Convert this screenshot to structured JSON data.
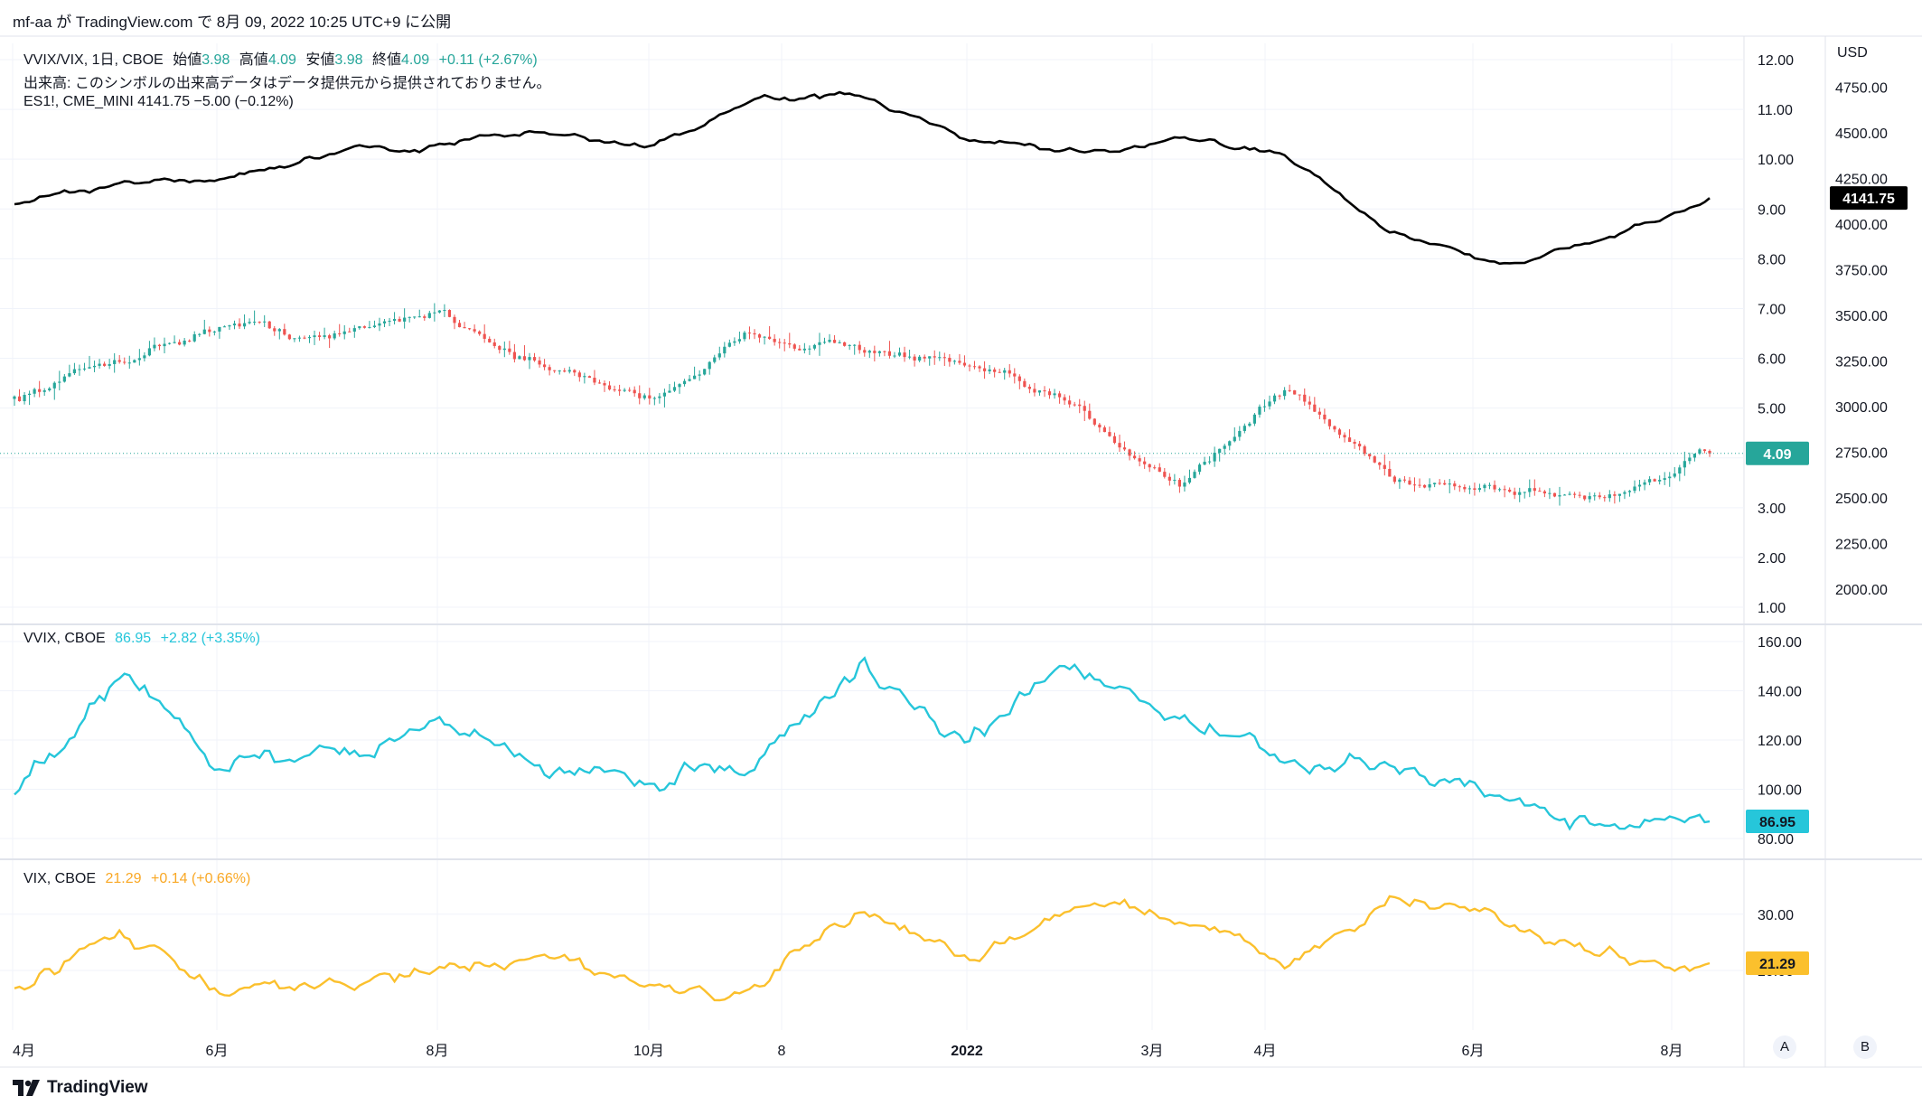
{
  "header": {
    "publish_text": "mf-aa が TradingView.com で 8月 09, 2022 10:25 UTC+9 に公開"
  },
  "brand": {
    "logo_text": "TradingView"
  },
  "colors": {
    "up": "#26a69a",
    "down": "#ef5350",
    "es_line": "#000000",
    "vvix_line": "#26c6da",
    "vix_line": "#fbc02d",
    "grid": "#f0f3fa",
    "text": "#131722"
  },
  "legend_main": {
    "symbol": "VVIX/VIX, 1日, CBOE",
    "open_label": "始値",
    "open": "3.98",
    "high_label": "高値",
    "high": "4.09",
    "low_label": "安値",
    "low": "3.98",
    "close_label": "終値",
    "close": "4.09",
    "change": "+0.11 (+2.67%)",
    "volume_note": "出来高: このシンボルの出来高データはデータ提供元から提供されておりません。",
    "es_line": "ES1!, CME_MINI  4141.75  −5.00 (−0.12%)"
  },
  "legend_vvix": {
    "symbol": "VVIX, CBOE",
    "value": "86.95",
    "change": "+2.82 (+3.35%)"
  },
  "legend_vix": {
    "symbol": "VIX, CBOE",
    "value": "21.29",
    "change": "+0.14 (+0.66%)"
  },
  "price_labels": {
    "ratio": "4.09",
    "es": "4141.75",
    "vvix": "86.95",
    "vix": "21.29",
    "currency": "USD"
  },
  "scale_buttons": {
    "a": "A",
    "b": "B"
  },
  "chart_data": [
    {
      "type": "candlestick",
      "title": "VVIX/VIX, 1日, CBOE",
      "x": [
        "2021-04",
        "2021-05",
        "2021-06",
        "2021-07",
        "2021-08",
        "2021-09",
        "2021-10",
        "2021-11",
        "2021-12",
        "2022-01",
        "2022-02",
        "2022-03",
        "2022-04",
        "2022-05",
        "2022-06",
        "2022-07",
        "2022-08"
      ],
      "close_monthly_approx": [
        5.2,
        6.0,
        6.7,
        6.4,
        7.0,
        5.8,
        5.2,
        6.5,
        6.2,
        5.8,
        5.0,
        3.5,
        5.4,
        3.6,
        3.4,
        3.2,
        4.09
      ],
      "y_ticks": [
        "1.00",
        "2.00",
        "3.00",
        "4.00",
        "5.00",
        "6.00",
        "7.00",
        "8.00",
        "9.00",
        "10.00",
        "11.00",
        "12.00"
      ],
      "ylim": [
        1,
        12
      ],
      "last": 4.09
    },
    {
      "type": "line",
      "title": "ES1!, CME_MINI",
      "x": [
        "2021-04",
        "2021-05",
        "2021-06",
        "2021-07",
        "2021-08",
        "2021-09",
        "2021-10",
        "2021-11",
        "2021-12",
        "2022-01",
        "2022-02",
        "2022-03",
        "2022-04",
        "2022-05",
        "2022-06",
        "2022-07",
        "2022-08"
      ],
      "values": [
        4100,
        4200,
        4260,
        4380,
        4430,
        4500,
        4420,
        4680,
        4700,
        4450,
        4380,
        4450,
        4400,
        3950,
        3800,
        3900,
        4141.75
      ],
      "y_ticks": [
        "2000.00",
        "2250.00",
        "2500.00",
        "2750.00",
        "3000.00",
        "3250.00",
        "3500.00",
        "3750.00",
        "4000.00",
        "4250.00",
        "4500.00",
        "4750.00"
      ],
      "ylim": [
        1900,
        4900
      ],
      "last": 4141.75
    },
    {
      "type": "line",
      "title": "VVIX, CBOE",
      "x": [
        "2021-04",
        "2021-05",
        "2021-06",
        "2021-07",
        "2021-08",
        "2021-09",
        "2021-10",
        "2021-11",
        "2021-12",
        "2022-01",
        "2022-02",
        "2022-03",
        "2022-04",
        "2022-05",
        "2022-06",
        "2022-07",
        "2022-08"
      ],
      "values": [
        100,
        146,
        110,
        112,
        128,
        108,
        104,
        112,
        150,
        118,
        152,
        130,
        110,
        108,
        98,
        85,
        86.95
      ],
      "y_ticks": [
        "80.00",
        "100.00",
        "120.00",
        "140.00",
        "160.00"
      ],
      "ylim": [
        80,
        160
      ],
      "last": 86.95
    },
    {
      "type": "line",
      "title": "VIX, CBOE",
      "x": [
        "2021-04",
        "2021-05",
        "2021-06",
        "2021-07",
        "2021-08",
        "2021-09",
        "2021-10",
        "2021-11",
        "2021-12",
        "2022-01",
        "2022-02",
        "2022-03",
        "2022-04",
        "2022-05",
        "2022-06",
        "2022-07",
        "2022-08"
      ],
      "values": [
        17,
        27,
        16,
        17,
        20,
        23,
        17,
        16,
        31,
        22,
        32,
        30,
        21,
        33,
        29,
        23,
        21.29
      ],
      "y_ticks": [
        "20.00",
        "30.00"
      ],
      "ylim": [
        11,
        38
      ],
      "last": 21.29
    }
  ],
  "x_axis_labels": [
    "4月",
    "6月",
    "8月",
    "10月",
    "8",
    "2022",
    "3月",
    "4月",
    "6月",
    "8月"
  ]
}
